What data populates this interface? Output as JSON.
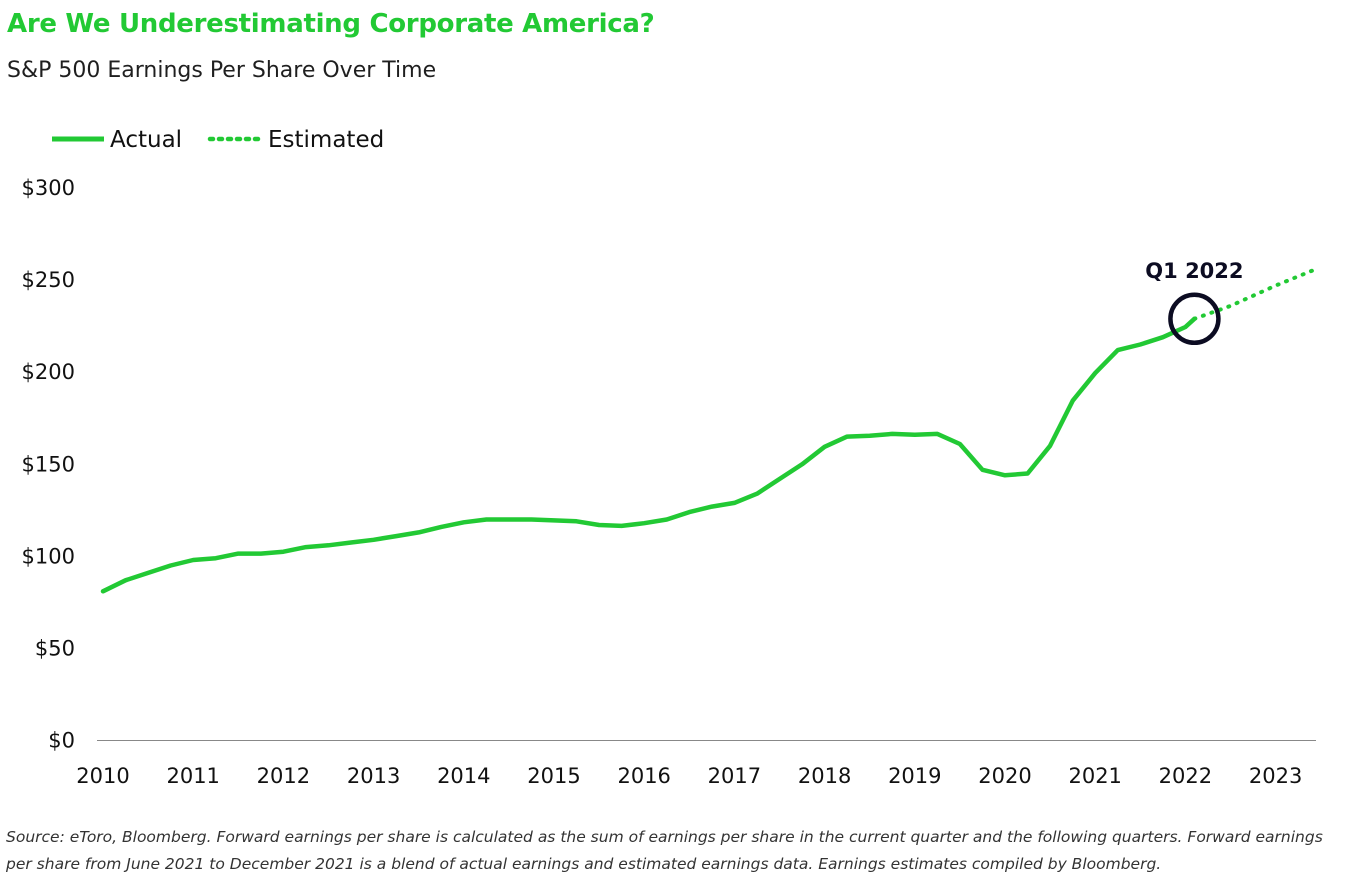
{
  "title": "Are We Underestimating Corporate America?",
  "subtitle": "S&P 500 Earnings Per Share Over Time",
  "source_note": "Source: eToro, Bloomberg. Forward earnings per share is calculated as the sum of earnings per share in the current quarter and the following quarters. Forward earnings per share from June 2021 to December 2021 is a blend of actual earnings and estimated earnings data. Earnings estimates compiled by Bloomberg.",
  "colors": {
    "accent": "#22c934",
    "annotation": "#0c0c22"
  },
  "chart_data": {
    "type": "line",
    "xlim": [
      2010,
      2023.5
    ],
    "ylim": [
      0,
      300
    ],
    "grid": false,
    "legend_position": "top-left",
    "y_ticks": [
      0,
      50,
      100,
      150,
      200,
      250,
      300
    ],
    "y_tick_labels": [
      "$0",
      "$50",
      "$100",
      "$150",
      "$200",
      "$250",
      "$300"
    ],
    "x_ticks": [
      2010,
      2011,
      2012,
      2013,
      2014,
      2015,
      2016,
      2017,
      2018,
      2019,
      2020,
      2021,
      2022,
      2023
    ],
    "x_tick_labels": [
      "2010",
      "2011",
      "2012",
      "2013",
      "2014",
      "2015",
      "2016",
      "2017",
      "2018",
      "2019",
      "2020",
      "2021",
      "2022",
      "2023"
    ],
    "series": [
      {
        "name": "Actual",
        "style": "solid",
        "color": "#22c934",
        "x": [
          2010.0,
          2010.25,
          2010.5,
          2010.75,
          2011.0,
          2011.25,
          2011.5,
          2011.75,
          2012.0,
          2012.25,
          2012.5,
          2012.75,
          2013.0,
          2013.25,
          2013.5,
          2013.75,
          2014.0,
          2014.25,
          2014.5,
          2014.75,
          2015.0,
          2015.25,
          2015.5,
          2015.75,
          2016.0,
          2016.25,
          2016.5,
          2016.75,
          2017.0,
          2017.25,
          2017.5,
          2017.75,
          2018.0,
          2018.25,
          2018.5,
          2018.75,
          2019.0,
          2019.25,
          2019.5,
          2019.75,
          2020.0,
          2020.25,
          2020.5,
          2020.75,
          2021.0,
          2021.25,
          2021.5,
          2021.75,
          2022.0,
          2022.1
        ],
        "y": [
          81,
          87,
          91,
          95,
          98,
          99,
          101.5,
          101.5,
          102.5,
          105,
          106,
          107.5,
          109,
          111,
          113,
          116,
          118.5,
          120,
          120,
          120,
          119.5,
          119,
          117,
          116.5,
          118,
          120,
          124,
          127,
          129,
          134,
          142,
          150,
          159.5,
          165,
          165.5,
          166.5,
          166,
          166.5,
          161,
          147,
          144,
          145,
          160,
          184.5,
          199.5,
          212,
          215,
          219,
          224.5,
          229
        ]
      },
      {
        "name": "Estimated",
        "style": "dotted",
        "color": "#22c934",
        "x": [
          2022.1,
          2022.5,
          2023.0,
          2023.45
        ],
        "y": [
          229,
          236,
          247,
          256
        ]
      }
    ],
    "annotations": [
      {
        "text": "Q1 2022",
        "x": 2022.1,
        "y": 229,
        "marker": "circle"
      }
    ]
  }
}
